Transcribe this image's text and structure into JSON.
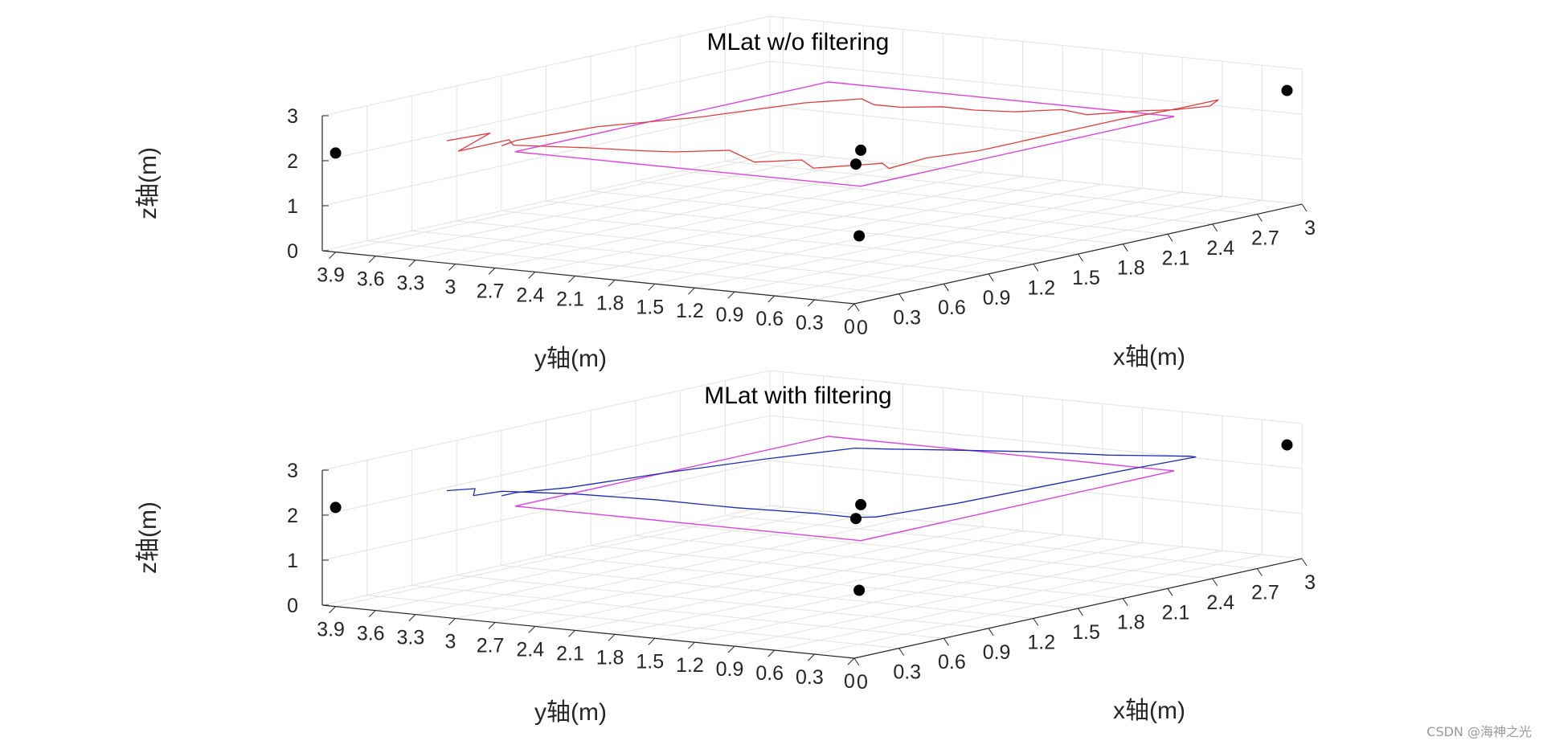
{
  "watermark": "CSDN @海神之光",
  "colors": {
    "grid": "#e3e3e3",
    "axis": "#262626",
    "raw_track": "#e23b3b",
    "filtered_track": "#1c2bb8",
    "reference_path": "#e040e0",
    "anchor": "#000000"
  },
  "chart_data": [
    {
      "type": "line3d",
      "title": "MLat w/o filtering",
      "xlabel": "x轴(m)",
      "ylabel": "y轴(m)",
      "zlabel": "z轴(m)",
      "xlim": [
        0,
        3
      ],
      "ylim": [
        0,
        4
      ],
      "zlim": [
        0,
        3
      ],
      "x_ticks": [
        "0",
        "0.3",
        "0.6",
        "0.9",
        "1.2",
        "1.5",
        "1.8",
        "2.1",
        "2.4",
        "2.7",
        "3"
      ],
      "y_ticks": [
        "0",
        "0.3",
        "0.6",
        "0.9",
        "1.2",
        "1.5",
        "1.8",
        "2.1",
        "2.4",
        "2.7",
        "3",
        "3.3",
        "3.6",
        "3.9"
      ],
      "z_ticks": [
        "0",
        "1",
        "2",
        "3"
      ],
      "anchors": [
        [
          0,
          3.9,
          2.2
        ],
        [
          0.1,
          0.1,
          3
        ],
        [
          0.4,
          0.4,
          3
        ],
        [
          0.3,
          0.3,
          1.2
        ],
        [
          2.9,
          0,
          2.6
        ]
      ],
      "reference_path": [
        [
          0.4,
          3.0,
          2.2
        ],
        [
          2.5,
          3.0,
          2.2
        ],
        [
          2.5,
          0.4,
          2.2
        ],
        [
          0.4,
          0.4,
          2.2
        ],
        [
          0.4,
          3.0,
          2.2
        ]
      ],
      "series": [
        {
          "name": "MLat w/o filtering",
          "color": "#e23b3b",
          "points": [
            [
              0.3,
              3.4,
              2.4
            ],
            [
              0.5,
              3.3,
              2.45
            ],
            [
              0.2,
              3.2,
              2.3
            ],
            [
              0.45,
              3.1,
              2.4
            ],
            [
              0.3,
              2.9,
              2.45
            ],
            [
              0.4,
              2.7,
              2.4
            ],
            [
              0.35,
              2.4,
              2.5
            ],
            [
              0.45,
              2.1,
              2.45
            ],
            [
              0.4,
              1.8,
              2.55
            ],
            [
              0.5,
              1.5,
              2.6
            ],
            [
              0.4,
              1.2,
              2.5
            ],
            [
              0.45,
              0.9,
              2.6
            ],
            [
              0.35,
              0.7,
              2.55
            ],
            [
              0.45,
              0.5,
              2.6
            ],
            [
              0.5,
              0.35,
              2.65
            ],
            [
              0.5,
              0.3,
              2.55
            ],
            [
              0.8,
              0.35,
              2.55
            ],
            [
              1.1,
              0.3,
              2.5
            ],
            [
              1.4,
              0.35,
              2.45
            ],
            [
              1.8,
              0.3,
              2.5
            ],
            [
              2.1,
              0.35,
              2.45
            ],
            [
              2.4,
              0.25,
              2.5
            ],
            [
              2.6,
              0.3,
              2.45
            ],
            [
              2.75,
              0.35,
              2.4
            ],
            [
              2.65,
              0.3,
              2.35
            ],
            [
              2.55,
              0.45,
              2.3
            ],
            [
              2.55,
              0.7,
              2.2
            ],
            [
              2.45,
              1.0,
              2.1
            ],
            [
              2.55,
              1.3,
              2.05
            ],
            [
              2.5,
              1.6,
              1.95
            ],
            [
              2.5,
              1.9,
              1.9
            ],
            [
              2.55,
              2.2,
              1.85
            ],
            [
              2.5,
              2.45,
              1.8
            ],
            [
              2.45,
              2.6,
              1.85
            ],
            [
              2.5,
              2.75,
              1.9
            ],
            [
              2.2,
              2.85,
              2.0
            ],
            [
              1.9,
              2.9,
              2.05
            ],
            [
              1.6,
              2.95,
              2.1
            ],
            [
              1.3,
              3.0,
              2.2
            ],
            [
              1.0,
              3.05,
              2.3
            ],
            [
              0.7,
              3.05,
              2.35
            ],
            [
              0.5,
              3.1,
              2.35
            ],
            [
              0.4,
              3.1,
              2.3
            ]
          ]
        }
      ]
    },
    {
      "type": "line3d",
      "title": "MLat with filtering",
      "xlabel": "x轴(m)",
      "ylabel": "y轴(m)",
      "zlabel": "z轴(m)",
      "xlim": [
        0,
        3
      ],
      "ylim": [
        0,
        4
      ],
      "zlim": [
        0,
        3
      ],
      "x_ticks": [
        "0",
        "0.3",
        "0.6",
        "0.9",
        "1.2",
        "1.5",
        "1.8",
        "2.1",
        "2.4",
        "2.7",
        "3"
      ],
      "y_ticks": [
        "0",
        "0.3",
        "0.6",
        "0.9",
        "1.2",
        "1.5",
        "1.8",
        "2.1",
        "2.4",
        "2.7",
        "3",
        "3.3",
        "3.6",
        "3.9"
      ],
      "z_ticks": [
        "0",
        "1",
        "2",
        "3"
      ],
      "anchors": [
        [
          0,
          3.9,
          2.2
        ],
        [
          0.1,
          0.1,
          3
        ],
        [
          0.4,
          0.4,
          3
        ],
        [
          0.3,
          0.3,
          1.2
        ],
        [
          2.9,
          0,
          2.6
        ]
      ],
      "reference_path": [
        [
          0.4,
          3.0,
          2.2
        ],
        [
          2.5,
          3.0,
          2.2
        ],
        [
          2.5,
          0.4,
          2.2
        ],
        [
          0.4,
          0.4,
          2.2
        ],
        [
          0.4,
          3.0,
          2.2
        ]
      ],
      "series": [
        {
          "name": "MLat with filtering",
          "color": "#1c2bb8",
          "points": [
            [
              0.3,
              3.4,
              2.5
            ],
            [
              0.4,
              3.3,
              2.5
            ],
            [
              0.3,
              3.2,
              2.45
            ],
            [
              0.4,
              3.1,
              2.5
            ],
            [
              0.45,
              2.6,
              2.55
            ],
            [
              0.45,
              2.0,
              2.6
            ],
            [
              0.45,
              1.4,
              2.6
            ],
            [
              0.45,
              0.8,
              2.65
            ],
            [
              0.45,
              0.5,
              2.65
            ],
            [
              0.5,
              0.4,
              2.65
            ],
            [
              1.0,
              0.35,
              2.6
            ],
            [
              1.6,
              0.35,
              2.55
            ],
            [
              2.2,
              0.35,
              2.5
            ],
            [
              2.6,
              0.35,
              2.45
            ],
            [
              2.65,
              0.45,
              2.4
            ],
            [
              2.6,
              1.0,
              2.3
            ],
            [
              2.6,
              1.6,
              2.2
            ],
            [
              2.55,
              2.2,
              2.1
            ],
            [
              2.55,
              2.6,
              2.0
            ],
            [
              2.5,
              2.8,
              2.0
            ],
            [
              2.0,
              2.9,
              2.1
            ],
            [
              1.4,
              3.0,
              2.2
            ],
            [
              0.8,
              3.05,
              2.3
            ],
            [
              0.5,
              3.1,
              2.4
            ],
            [
              0.4,
              3.1,
              2.4
            ]
          ]
        }
      ]
    }
  ]
}
